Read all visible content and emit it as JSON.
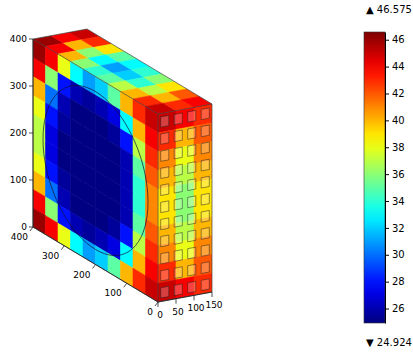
{
  "chart_data": {
    "type": "heatmap3d",
    "xlim": [
      0,
      150
    ],
    "xticks": [
      0,
      50,
      100,
      150
    ],
    "ylim": [
      0,
      400
    ],
    "yticks": [
      0,
      100,
      200,
      300,
      400
    ],
    "zlim": [
      0,
      400
    ],
    "zticks": [
      0,
      100,
      200,
      300,
      400
    ],
    "front_cells": [
      [
        46,
        44,
        38,
        33,
        31,
        32,
        35,
        40,
        43,
        45
      ],
      [
        44,
        36,
        28,
        26,
        25.5,
        26,
        27,
        33,
        40,
        44
      ],
      [
        40,
        30,
        26,
        25,
        25,
        25,
        25.5,
        28,
        37,
        43
      ],
      [
        38,
        28,
        25.5,
        25,
        25,
        25,
        25,
        26,
        35,
        42
      ],
      [
        37,
        27,
        25,
        25,
        25,
        25,
        25,
        26,
        34,
        41
      ],
      [
        37,
        27,
        25,
        25,
        25,
        25,
        25,
        26,
        34,
        41
      ],
      [
        38,
        28,
        25.5,
        25,
        25,
        25,
        25,
        26,
        35,
        42
      ],
      [
        40,
        30,
        26,
        25,
        25,
        25,
        25.5,
        28,
        37,
        43
      ],
      [
        44,
        36,
        28,
        26,
        25.5,
        26,
        27,
        33,
        40,
        44
      ],
      [
        46,
        44,
        38,
        33,
        31,
        32,
        35,
        40,
        43,
        45
      ]
    ],
    "side_cells": [
      [
        45,
        44,
        43
      ],
      [
        43,
        40,
        42
      ],
      [
        41,
        38,
        41
      ],
      [
        40,
        37,
        40
      ],
      [
        39,
        36,
        39
      ],
      [
        39,
        36,
        39
      ],
      [
        40,
        37,
        40
      ],
      [
        41,
        38,
        41
      ],
      [
        43,
        40,
        42
      ],
      [
        45,
        44,
        43
      ]
    ],
    "top_cells": [
      [
        46,
        44,
        45
      ],
      [
        44,
        40,
        43
      ],
      [
        40,
        36,
        39
      ],
      [
        36,
        33,
        35
      ],
      [
        34,
        31,
        33
      ],
      [
        35,
        32,
        34
      ],
      [
        37,
        34,
        36
      ],
      [
        40,
        37,
        39
      ],
      [
        43,
        40,
        42
      ],
      [
        45,
        43,
        44
      ]
    ],
    "colorbar": {
      "range": [
        24.924,
        46.575
      ],
      "ticks": [
        26,
        28,
        30,
        32,
        34,
        36,
        38,
        40,
        42,
        44,
        46
      ],
      "max_label": "▲ 46.575",
      "min_label": "▼ 24.924"
    }
  }
}
